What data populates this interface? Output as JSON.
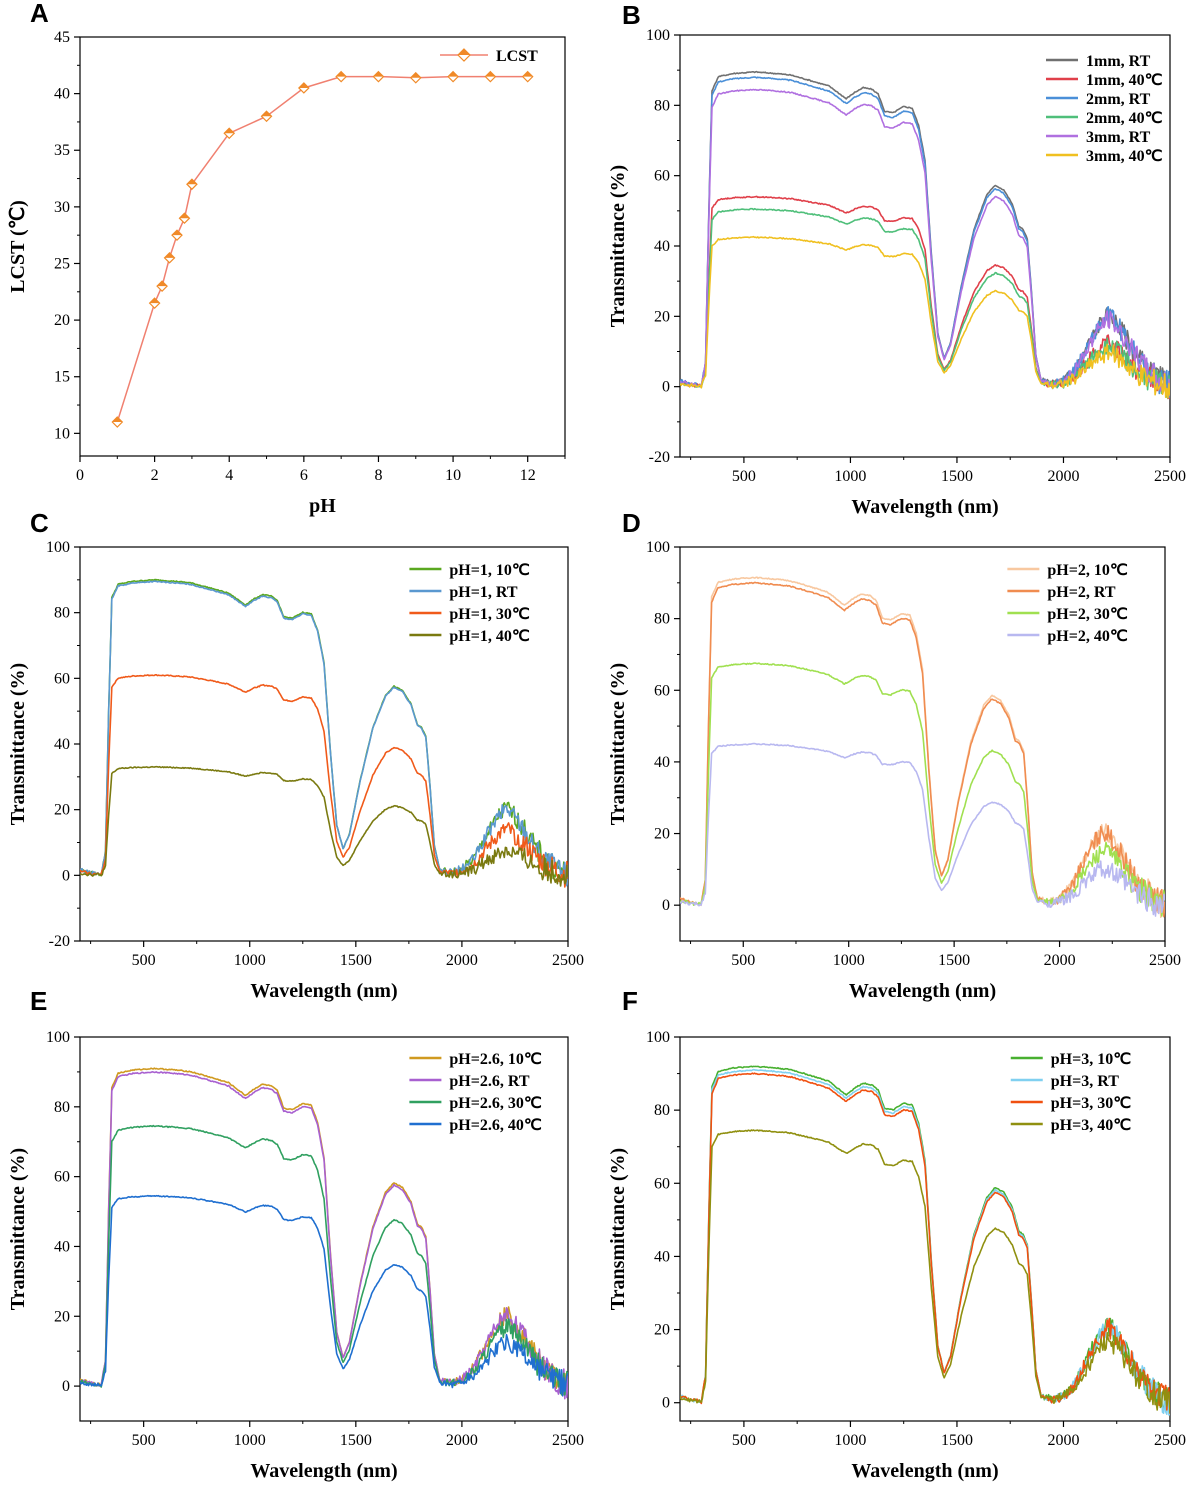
{
  "chart_data": [
    {
      "panel": "A",
      "type": "line",
      "xlabel": "pH",
      "ylabel": "LCST (℃)",
      "xlim": [
        0,
        13
      ],
      "ylim": [
        8,
        45
      ],
      "xticks": [
        0,
        2,
        4,
        6,
        8,
        10,
        12
      ],
      "yticks": [
        10,
        15,
        20,
        25,
        30,
        35,
        40,
        45
      ],
      "series": [
        {
          "name": "LCST",
          "color": "#f08070",
          "marker_color": "#f08a28",
          "x": [
            1,
            2,
            2.2,
            2.4,
            2.6,
            2.8,
            3,
            4,
            5,
            6,
            7,
            8,
            9,
            10,
            11,
            12
          ],
          "y": [
            11,
            21.5,
            23,
            25.5,
            27.5,
            29,
            32,
            36.5,
            38,
            40.5,
            41.5,
            41.5,
            41.4,
            41.5,
            41.5,
            41.5
          ]
        }
      ]
    },
    {
      "panel": "B",
      "type": "line",
      "xlabel": "Wavelength (nm)",
      "ylabel": "Transmittance (%)",
      "xlim": [
        200,
        2500
      ],
      "ylim": [
        -20,
        100
      ],
      "xticks": [
        500,
        1000,
        1500,
        2000,
        2500
      ],
      "yticks": [
        -20,
        0,
        20,
        40,
        60,
        80,
        100
      ],
      "series": [
        {
          "name": "1mm, RT",
          "color": "#707070",
          "level": 89.5
        },
        {
          "name": "1mm, 40℃",
          "color": "#e0404a",
          "level": 54
        },
        {
          "name": "2mm, RT",
          "color": "#4a8fd8",
          "level": 88
        },
        {
          "name": "2mm, 40℃",
          "color": "#4fbf7a",
          "level": 50.5
        },
        {
          "name": "3mm, RT",
          "color": "#b070e0",
          "level": 84.5
        },
        {
          "name": "3mm, 40℃",
          "color": "#f0c020",
          "level": 42.5
        }
      ]
    },
    {
      "panel": "C",
      "type": "line",
      "xlabel": "Wavelength (nm)",
      "ylabel": "Transmittance (%)",
      "xlim": [
        200,
        2500
      ],
      "ylim": [
        -20,
        100
      ],
      "xticks": [
        500,
        1000,
        1500,
        2000,
        2500
      ],
      "yticks": [
        -20,
        0,
        20,
        40,
        60,
        80,
        100
      ],
      "series": [
        {
          "name": "pH=1, 10℃",
          "color": "#5aa820",
          "level": 90
        },
        {
          "name": "pH=1, RT",
          "color": "#5a98d0",
          "level": 89.5
        },
        {
          "name": "pH=1, 30℃",
          "color": "#f05a1a",
          "level": 61
        },
        {
          "name": "pH=1, 40℃",
          "color": "#7a7a10",
          "level": 33
        }
      ]
    },
    {
      "panel": "D",
      "type": "line",
      "xlabel": "Wavelength (nm)",
      "ylabel": "Transmittance (%)",
      "xlim": [
        200,
        2500
      ],
      "ylim": [
        -10,
        100
      ],
      "xticks": [
        500,
        1000,
        1500,
        2000,
        2500
      ],
      "yticks": [
        0,
        20,
        40,
        60,
        80,
        100
      ],
      "series": [
        {
          "name": "pH=2, 10℃",
          "color": "#f8c8a0",
          "level": 91.5
        },
        {
          "name": "pH=2, RT",
          "color": "#f08c50",
          "level": 90
        },
        {
          "name": "pH=2, 30℃",
          "color": "#a0e050",
          "level": 67.5
        },
        {
          "name": "pH=2, 40℃",
          "color": "#b8b8f0",
          "level": 45
        }
      ]
    },
    {
      "panel": "E",
      "type": "line",
      "xlabel": "Wavelength (nm)",
      "ylabel": "Transmittance (%)",
      "xlim": [
        200,
        2500
      ],
      "ylim": [
        -10,
        100
      ],
      "xticks": [
        500,
        1000,
        1500,
        2000,
        2500
      ],
      "yticks": [
        0,
        20,
        40,
        60,
        80,
        100
      ],
      "series": [
        {
          "name": "pH=2.6, 10℃",
          "color": "#d09a20",
          "level": 91
        },
        {
          "name": "pH=2.6, RT",
          "color": "#a860d0",
          "level": 90
        },
        {
          "name": "pH=2.6, 30℃",
          "color": "#30a060",
          "level": 74.5
        },
        {
          "name": "pH=2.6, 40℃",
          "color": "#1f6fd0",
          "level": 54.5
        }
      ]
    },
    {
      "panel": "F",
      "type": "line",
      "xlabel": "Wavelength (nm)",
      "ylabel": "Transmittance (%)",
      "xlim": [
        200,
        2500
      ],
      "ylim": [
        -5,
        100
      ],
      "xticks": [
        500,
        1000,
        1500,
        2000,
        2500
      ],
      "yticks": [
        0,
        20,
        40,
        60,
        80,
        100
      ],
      "series": [
        {
          "name": "pH=3, 10℃",
          "color": "#48b030",
          "level": 92
        },
        {
          "name": "pH=3, RT",
          "color": "#80d0f0",
          "level": 91
        },
        {
          "name": "pH=3, 30℃",
          "color": "#f05010",
          "level": 90
        },
        {
          "name": "pH=3, 40℃",
          "color": "#909010",
          "level": 74.5
        }
      ]
    }
  ]
}
